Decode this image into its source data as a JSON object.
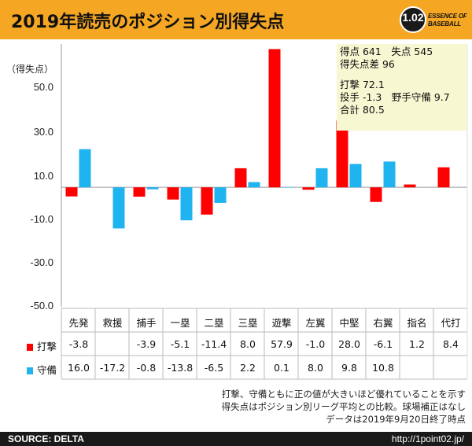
{
  "header": {
    "title": "2019年読売のポジション別得失点",
    "logo_number": "1.02",
    "logo_line1": "ESSENCE OF",
    "logo_line2": "BASEBALL"
  },
  "summary": {
    "line1": "得点 641　失点 545",
    "line2": "得失点差 96",
    "line3": "打撃 72.1",
    "line4": "投手 -1.3　野手守備 9.7",
    "line5": "合計 80.5"
  },
  "notes": {
    "line1": "打撃、守備ともに正の値が大きいほど優れていることを示す",
    "line2": "得失点はポジション別リーグ平均との比較。球場補正はなし",
    "line3": "データは2019年9月20日終了時点"
  },
  "footer": {
    "source": "SOURCE: DELTA",
    "url": "http://1point02.jp/"
  },
  "chart_data": {
    "type": "bar",
    "ylabel": "（得失点）",
    "ylim": [
      -50,
      60
    ],
    "yticks": [
      "50.0",
      "30.0",
      "10.0",
      "-10.0",
      "-30.0",
      "-50.0"
    ],
    "ytick_values": [
      50,
      30,
      10,
      -10,
      -30,
      -50
    ],
    "grid": false,
    "legend": "table-left",
    "categories": [
      "先発",
      "救援",
      "捕手",
      "一塁",
      "二塁",
      "三塁",
      "遊撃",
      "左翼",
      "中堅",
      "右翼",
      "指名",
      "代打"
    ],
    "series": [
      {
        "name": "打撃",
        "color": "#ff0000",
        "values": [
          -3.8,
          null,
          -3.9,
          -5.1,
          -11.4,
          8.0,
          57.9,
          -1.0,
          28.0,
          -6.1,
          1.2,
          8.4
        ],
        "labels": [
          "-3.8",
          "",
          "-3.9",
          "-5.1",
          "-11.4",
          "8.0",
          "57.9",
          "-1.0",
          "28.0",
          "-6.1",
          "1.2",
          "8.4"
        ]
      },
      {
        "name": "守備",
        "color": "#1fb3f0",
        "values": [
          16.0,
          -17.2,
          -0.8,
          -13.8,
          -6.5,
          2.2,
          0.1,
          8.0,
          9.8,
          10.8,
          null,
          null
        ],
        "labels": [
          "16.0",
          "-17.2",
          "-0.8",
          "-13.8",
          "-6.5",
          "2.2",
          "0.1",
          "8.0",
          "9.8",
          "10.8",
          "",
          ""
        ]
      }
    ]
  }
}
